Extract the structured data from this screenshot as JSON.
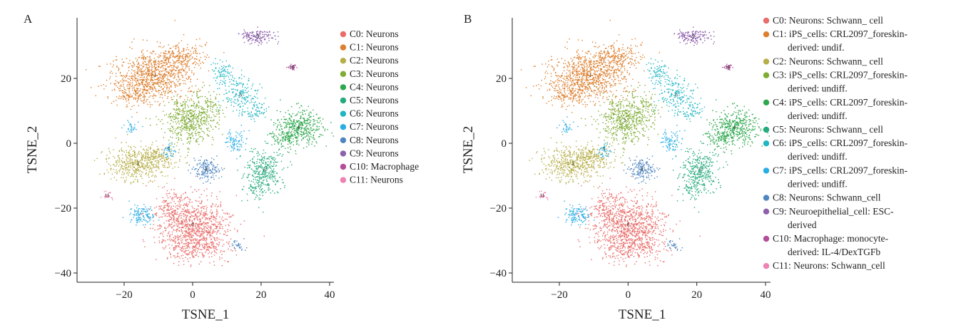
{
  "chart_data": [
    {
      "panel": "A",
      "type": "scatter",
      "xlabel": "TSNE_1",
      "ylabel": "TSNE_2",
      "xlim": [
        -33,
        42
      ],
      "ylim": [
        -42,
        36
      ],
      "xticks": [
        -20,
        0,
        20,
        40
      ],
      "yticks": [
        20,
        0,
        -20,
        -40
      ],
      "xtick_labels": [
        "−20",
        "0",
        "20",
        "40"
      ],
      "ytick_labels": [
        "20",
        "0",
        "−20",
        "−40"
      ],
      "legend_position": "right",
      "legend": [
        {
          "id": 0,
          "color": "#e86d6a",
          "lines": [
            "C0: Neurons"
          ]
        },
        {
          "id": 1,
          "color": "#dd7f2e",
          "lines": [
            "C1: Neurons"
          ]
        },
        {
          "id": 2,
          "color": "#b7ae49",
          "lines": [
            "C2: Neurons"
          ]
        },
        {
          "id": 3,
          "color": "#7fac33",
          "lines": [
            "C3: Neurons"
          ]
        },
        {
          "id": 4,
          "color": "#2da84e",
          "lines": [
            "C4: Neurons"
          ]
        },
        {
          "id": 5,
          "color": "#26ab7d",
          "lines": [
            "C5: Neurons"
          ]
        },
        {
          "id": 6,
          "color": "#21b6c4",
          "lines": [
            "C6: Neurons"
          ]
        },
        {
          "id": 7,
          "color": "#28aee4",
          "lines": [
            "C7: Neurons"
          ]
        },
        {
          "id": 8,
          "color": "#4e86c1",
          "lines": [
            "C8: Neurons"
          ]
        },
        {
          "id": 9,
          "color": "#8e61ad",
          "lines": [
            "C9: Neurons"
          ]
        },
        {
          "id": 10,
          "color": "#b44d9b",
          "lines": [
            "C10: Macrophage"
          ]
        },
        {
          "id": 11,
          "color": "#ee83b3",
          "lines": [
            "C11: Neurons"
          ]
        }
      ]
    },
    {
      "panel": "B",
      "type": "scatter",
      "xlabel": "TSNE_1",
      "ylabel": "TSNE_2",
      "xlim": [
        -33,
        42
      ],
      "ylim": [
        -42,
        36
      ],
      "xticks": [
        -20,
        0,
        20,
        40
      ],
      "yticks": [
        20,
        0,
        -20,
        -40
      ],
      "xtick_labels": [
        "−20",
        "0",
        "20",
        "40"
      ],
      "ytick_labels": [
        "20",
        "0",
        "−20",
        "−40"
      ],
      "legend_position": "right",
      "legend": [
        {
          "id": 0,
          "color": "#e86d6a",
          "lines": [
            "C0: Neurons: Schwann_ cell"
          ]
        },
        {
          "id": 1,
          "color": "#dd7f2e",
          "lines": [
            "C1: iPS_cells: CRL2097_foreskin-",
            "derived: undif."
          ]
        },
        {
          "id": 2,
          "color": "#b7ae49",
          "lines": [
            "C2: Neurons: Schwann_ cell"
          ]
        },
        {
          "id": 3,
          "color": "#7fac33",
          "lines": [
            "C3: iPS_cells: CRL2097_foreskin-",
            "derived: undiff."
          ]
        },
        {
          "id": 4,
          "color": "#2da84e",
          "lines": [
            "C4: iPS_cells: CRL2097_foreskin-",
            "derived: undiff."
          ]
        },
        {
          "id": 5,
          "color": "#26ab7d",
          "lines": [
            "C5: Neurons: Schwann_ cell"
          ]
        },
        {
          "id": 6,
          "color": "#21b6c4",
          "lines": [
            "C6: iPS_cells: CRL2097_foreskin-",
            "derived: undiff."
          ]
        },
        {
          "id": 7,
          "color": "#28aee4",
          "lines": [
            "C7: iPS_cells: CRL2097_foreskin-",
            "derived: undiff."
          ]
        },
        {
          "id": 8,
          "color": "#4e86c1",
          "lines": [
            "C8: Neurons: Schwann_cell"
          ]
        },
        {
          "id": 9,
          "color": "#8e61ad",
          "lines": [
            "C9: Neuroepithelial_cell: ESC-",
            "derived"
          ]
        },
        {
          "id": 10,
          "color": "#b44d9b",
          "lines": [
            "C10: Macrophage: monocyte-",
            "derived: IL-4/DexTGFb"
          ]
        },
        {
          "id": 11,
          "color": "#ee83b3",
          "lines": [
            "C11: Neurons: Schwann_cell"
          ]
        }
      ]
    }
  ],
  "clusters": [
    {
      "id": 0,
      "label": "0",
      "x": 0,
      "y": -25,
      "blobs": [
        [
          0,
          -25,
          10,
          8,
          900
        ],
        [
          2,
          -32,
          8,
          4,
          200
        ],
        [
          -6,
          -20,
          5,
          5,
          120
        ]
      ]
    },
    {
      "id": 1,
      "label": "1",
      "x": -11,
      "y": 21,
      "blobs": [
        [
          -11,
          21,
          11,
          7,
          850
        ],
        [
          -4,
          27,
          7,
          4,
          200
        ],
        [
          -18,
          16,
          6,
          4,
          150
        ]
      ]
    },
    {
      "id": 2,
      "label": "2",
      "x": -16,
      "y": -6,
      "blobs": [
        [
          -16,
          -6,
          9,
          5,
          500
        ],
        [
          -10,
          -3,
          4,
          3,
          80
        ]
      ]
    },
    {
      "id": 3,
      "label": "3",
      "x": -1,
      "y": 7,
      "blobs": [
        [
          -1,
          7,
          7,
          7,
          500
        ],
        [
          4,
          12,
          4,
          4,
          100
        ]
      ]
    },
    {
      "id": 4,
      "label": "4",
      "x": 31,
      "y": 5,
      "blobs": [
        [
          31,
          5,
          6,
          5,
          400
        ],
        [
          26,
          2,
          4,
          3,
          100
        ]
      ]
    },
    {
      "id": 5,
      "label": "5",
      "x": 21,
      "y": -8,
      "blobs": [
        [
          21,
          -8,
          5,
          6,
          320
        ],
        [
          18,
          -14,
          3,
          3,
          60
        ]
      ]
    },
    {
      "id": 6,
      "label": "6",
      "x": 14,
      "y": 15,
      "blobs": [
        [
          14,
          15,
          5,
          5,
          180
        ],
        [
          9,
          22,
          3,
          3,
          80
        ],
        [
          18,
          10,
          3,
          3,
          60
        ]
      ]
    },
    {
      "id": 7,
      "label": "7",
      "x": -7,
      "y": -2,
      "blobs": [
        [
          -15,
          -22,
          3,
          3,
          120
        ],
        [
          12,
          1,
          3,
          3,
          90
        ],
        [
          -18,
          5,
          2,
          2,
          30
        ],
        [
          -7,
          -2,
          2,
          2,
          40
        ]
      ]
    },
    {
      "id": 8,
      "label": "8",
      "x": 4,
      "y": -8,
      "blobs": [
        [
          4,
          -8,
          4,
          3,
          160
        ],
        [
          13,
          -31,
          2,
          2,
          30
        ]
      ]
    },
    {
      "id": 9,
      "label": "9",
      "x": 19,
      "y": 33,
      "blobs": [
        [
          19,
          33,
          5,
          2,
          150
        ]
      ]
    },
    {
      "id": 10,
      "label": "10",
      "x": 29,
      "y": 23.5,
      "blobs": [
        [
          29,
          23.5,
          1.2,
          0.8,
          30
        ]
      ]
    },
    {
      "id": 11,
      "label": "11",
      "x": -25,
      "y": -16,
      "blobs": [
        [
          -25,
          -16,
          1.2,
          1.2,
          25
        ]
      ]
    }
  ]
}
